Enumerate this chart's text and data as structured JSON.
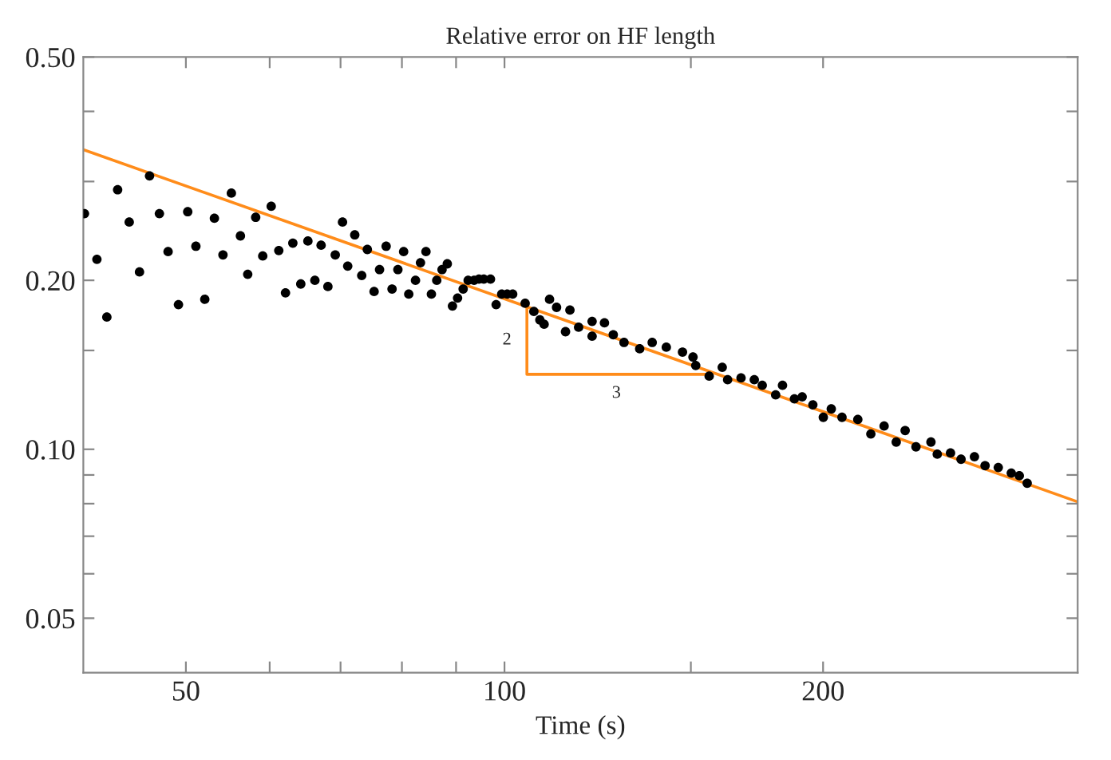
{
  "chart_data": {
    "type": "scatter",
    "title": "Relative error on HF length",
    "xlabel": "Time (s)",
    "log": "xy",
    "grid": false,
    "legend": false,
    "xlim": [
      40,
      348
    ],
    "ylim": [
      0.04,
      0.5
    ],
    "xticks": [
      50,
      {
        "value": 60,
        "label": null
      },
      {
        "value": 70,
        "label": null
      },
      {
        "value": 80,
        "label": null
      },
      {
        "value": 90,
        "label": null
      },
      100,
      {
        "value": 150,
        "label": null
      },
      200
    ],
    "yticks": [
      {
        "value": 0.05,
        "label": "0.05"
      },
      {
        "value": 0.06,
        "label": null
      },
      {
        "value": 0.07,
        "label": null
      },
      {
        "value": 0.08,
        "label": null
      },
      {
        "value": 0.09,
        "label": null
      },
      {
        "value": 0.1,
        "label": "0.10"
      },
      {
        "value": 0.15,
        "label": null
      },
      {
        "value": 0.2,
        "label": "0.20"
      },
      {
        "value": 0.3,
        "label": null
      },
      {
        "value": 0.4,
        "label": null
      },
      {
        "value": 0.5,
        "label": "0.50"
      }
    ],
    "annotations": [
      "2",
      "3"
    ],
    "series": [
      {
        "color": "#000000",
        "marker": "circle",
        "x": [
          40.1,
          41.2,
          42.1,
          43.1,
          44.2,
          45.2,
          46.2,
          47.2,
          48.1,
          49.2,
          50.2,
          51.1,
          52.1,
          53.2,
          54.2,
          55.2,
          56.3,
          57.2,
          58.2,
          59.1,
          60.2,
          61.2,
          62.1,
          63.1,
          64.2,
          65.2,
          66.2,
          67.1,
          68.1,
          69.2,
          70.3,
          71.1,
          72.2,
          73.3,
          74.2,
          75.3,
          76.2,
          77.3,
          78.3,
          79.3,
          80.3,
          81.2,
          82.4,
          83.3,
          84.3,
          85.3,
          86.3,
          87.3,
          88.3,
          89.3,
          90.3,
          91.4,
          92.4,
          93.6,
          94.6,
          95.6,
          97.0,
          98.2,
          99.4,
          100.6,
          101.8,
          104.6,
          106.6,
          108.0,
          109.0,
          110.3,
          112.0,
          114.2,
          115.3,
          117.5,
          121.0,
          121.0,
          124.3,
          126.7,
          129.7,
          134.2,
          137.9,
          142.2,
          147.3,
          150.7,
          151.6,
          156.1,
          160.6,
          162.5,
          167.3,
          172.2,
          175.2,
          180.4,
          183.1,
          187.9,
          191.1,
          195.6,
          200.1,
          203.6,
          208.4,
          215.7,
          221.9,
          228.4,
          234.5,
          239.1,
          244.8,
          252.9,
          256.4,
          263.9,
          270.0,
          278.0,
          284.5,
          292.8,
          301.2,
          306.5,
          311.8
        ],
        "values": [
          0.263,
          0.218,
          0.172,
          0.29,
          0.254,
          0.207,
          0.307,
          0.263,
          0.225,
          0.181,
          0.265,
          0.23,
          0.185,
          0.258,
          0.222,
          0.286,
          0.24,
          0.205,
          0.259,
          0.221,
          0.271,
          0.226,
          0.19,
          0.233,
          0.197,
          0.235,
          0.2,
          0.231,
          0.195,
          0.222,
          0.254,
          0.212,
          0.241,
          0.204,
          0.227,
          0.191,
          0.209,
          0.23,
          0.193,
          0.209,
          0.225,
          0.189,
          0.2,
          0.215,
          0.225,
          0.189,
          0.2,
          0.209,
          0.214,
          0.18,
          0.186,
          0.193,
          0.2,
          0.2,
          0.201,
          0.201,
          0.201,
          0.181,
          0.189,
          0.189,
          0.189,
          0.182,
          0.176,
          0.17,
          0.167,
          0.185,
          0.179,
          0.162,
          0.177,
          0.165,
          0.169,
          0.159,
          0.168,
          0.16,
          0.155,
          0.151,
          0.155,
          0.152,
          0.149,
          0.146,
          0.141,
          0.135,
          0.14,
          0.133,
          0.134,
          0.133,
          0.13,
          0.125,
          0.13,
          0.123,
          0.124,
          0.12,
          0.114,
          0.118,
          0.114,
          0.113,
          0.1065,
          0.11,
          0.103,
          0.108,
          0.101,
          0.103,
          0.098,
          0.0985,
          0.096,
          0.097,
          0.0935,
          0.0928,
          0.0907,
          0.0897,
          0.087
        ]
      },
      {
        "type": "line",
        "color": "#ff8c1a",
        "line_style": "solid",
        "x": [
          40,
          348
        ],
        "values": [
          0.342,
          0.0806
        ]
      },
      {
        "type": "line",
        "color": "#ff8c1a",
        "line_style": "solid",
        "x": [
          105,
          105,
          155
        ],
        "values": [
          0.18,
          0.136,
          0.136
        ]
      }
    ]
  }
}
